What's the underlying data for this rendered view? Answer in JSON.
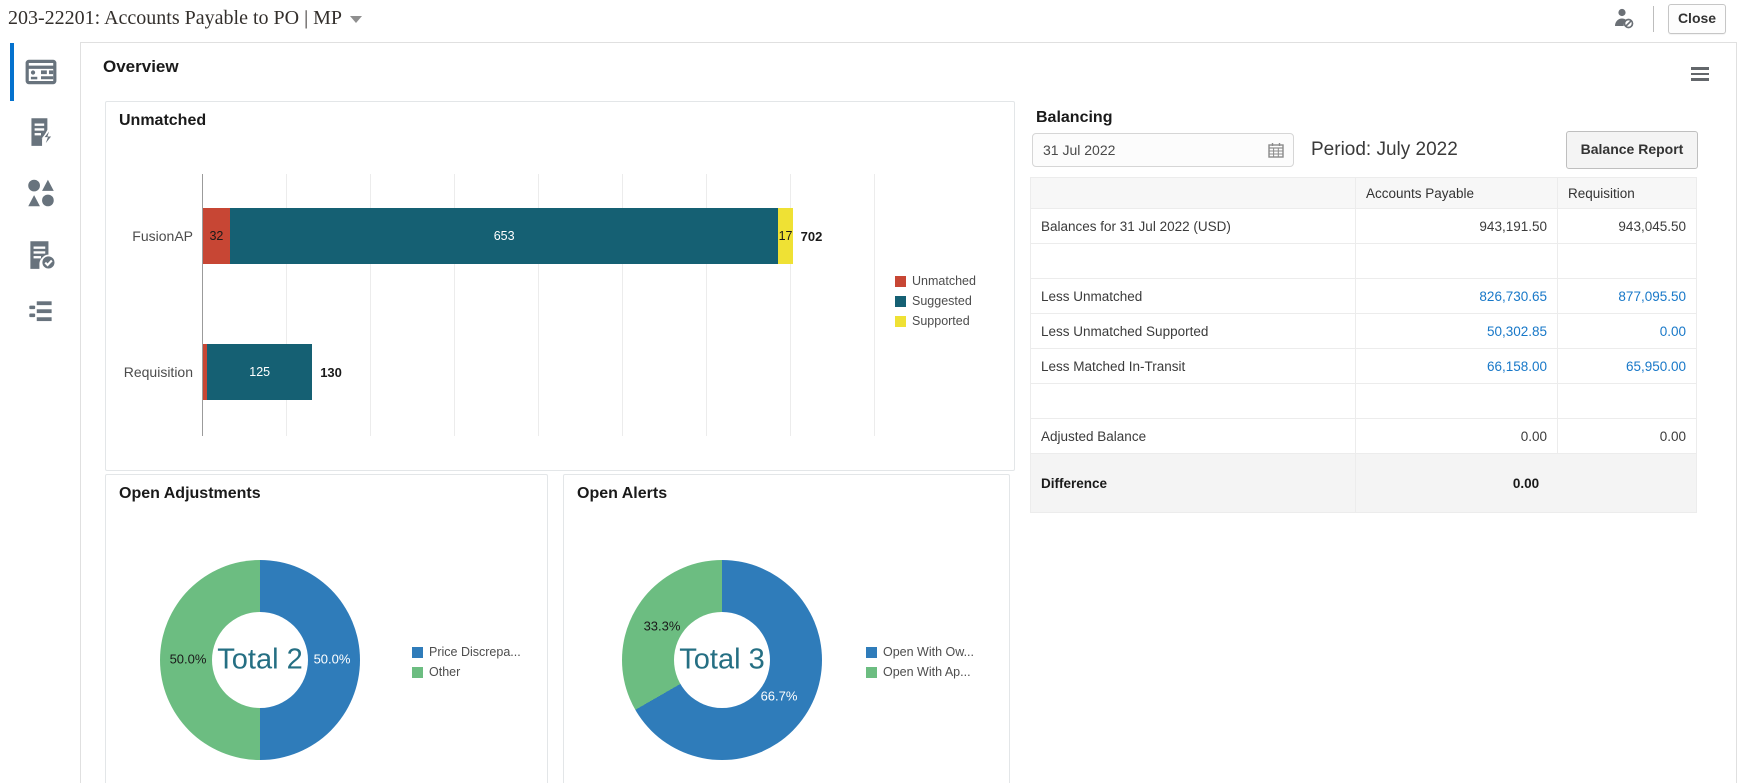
{
  "header": {
    "title": "203-22201: Accounts Payable to PO | MP",
    "close_button": "Close",
    "icons": [
      "user-access-icon",
      "dropdown-caret-icon"
    ]
  },
  "sidebar": {
    "accent_color": "#0572ce",
    "items": [
      {
        "icon": "overview-dashboard-icon",
        "selected": true
      },
      {
        "icon": "transactions-bolt-icon",
        "selected": false
      },
      {
        "icon": "matches-shapes-icon",
        "selected": false
      },
      {
        "icon": "document-check-icon",
        "selected": false
      },
      {
        "icon": "adjustments-list-icon",
        "selected": false
      }
    ]
  },
  "page": {
    "title": "Overview",
    "menu_icon": "hamburger-menu-icon"
  },
  "panels": {
    "unmatched": {
      "title": "Unmatched",
      "chart_data": {
        "type": "bar",
        "orientation": "horizontal-stacked",
        "categories": [
          "FusionAP",
          "Requisition"
        ],
        "series": [
          {
            "name": "Unmatched",
            "color": "#c74634",
            "label_color": "#1a1a1a",
            "values": [
              32,
              5
            ]
          },
          {
            "name": "Suggested",
            "color": "#156073",
            "label_color": "#ffffff",
            "values": [
              653,
              125
            ]
          },
          {
            "name": "Supported",
            "color": "#efe134",
            "label_color": "#1a1a1a",
            "values": [
              17,
              0
            ]
          }
        ],
        "totals": [
          702,
          130
        ],
        "xlim": [
          0,
          800
        ],
        "gridline_every": 100,
        "legend_position": "right"
      }
    },
    "open_adjustments": {
      "title": "Open Adjustments",
      "center_label": "Total 2",
      "chart_data": {
        "type": "pie",
        "donut": true,
        "total": 2,
        "slices": [
          {
            "label": "Price Discrepa...",
            "pct": 50.0,
            "pct_label": "50.0%",
            "color": "#2f7cba"
          },
          {
            "label": "Other",
            "pct": 50.0,
            "pct_label": "50.0%",
            "color": "#6cbd81"
          }
        ]
      }
    },
    "open_alerts": {
      "title": "Open Alerts",
      "center_label": "Total 3",
      "chart_data": {
        "type": "pie",
        "donut": true,
        "total": 3,
        "slices": [
          {
            "label": "Open With Ow...",
            "pct": 66.7,
            "pct_label": "66.7%",
            "color": "#2f7cba"
          },
          {
            "label": "Open With Ap...",
            "pct": 33.3,
            "pct_label": "33.3%",
            "color": "#6cbd81"
          }
        ]
      }
    }
  },
  "balancing": {
    "title": "Balancing",
    "date_value": "31 Jul 2022",
    "calendar_icon": "calendar-icon",
    "period_label": "Period: July 2022",
    "report_button": "Balance Report",
    "table": {
      "columns": [
        "",
        "Accounts Payable",
        "Requisition"
      ],
      "link_color": "#1878c8",
      "rows": [
        {
          "style": "plain",
          "label": "Balances for 31 Jul 2022 (USD)",
          "ap": "943,191.50",
          "req": "943,045.50"
        },
        {
          "style": "empty",
          "label": "",
          "ap": "",
          "req": ""
        },
        {
          "style": "link",
          "label": "Less Unmatched",
          "ap": "826,730.65",
          "req": "877,095.50"
        },
        {
          "style": "link",
          "label": "Less Unmatched Supported",
          "ap": "50,302.85",
          "req": "0.00"
        },
        {
          "style": "link",
          "label": "Less Matched In-Transit",
          "ap": "66,158.00",
          "req": "65,950.00"
        },
        {
          "style": "empty",
          "label": "",
          "ap": "",
          "req": ""
        },
        {
          "style": "plain",
          "label": "Adjusted Balance",
          "ap": "0.00",
          "req": "0.00"
        },
        {
          "style": "difference",
          "label": "Difference",
          "value": "0.00"
        }
      ]
    }
  }
}
